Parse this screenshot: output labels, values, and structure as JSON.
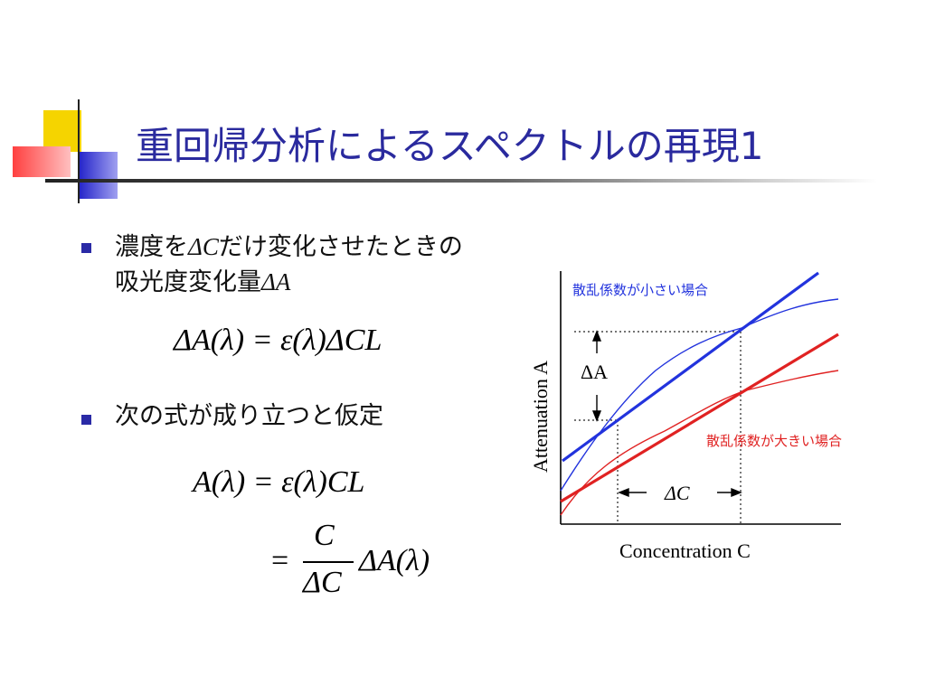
{
  "slide": {
    "title": "重回帰分析によるスペクトルの再現1"
  },
  "bullets": [
    {
      "line1_a": "濃度を",
      "line1_b": "ΔC",
      "line1_c": "だけ変化させたときの",
      "line2_a": "吸光度変化量",
      "line2_b": "ΔA"
    },
    {
      "text": "次の式が成り立つと仮定"
    }
  ],
  "equations": {
    "eq1": "ΔA(λ) = ε(λ)ΔCL",
    "eq2": "A(λ) = ε(λ)CL",
    "eq3_eq": "=",
    "eq3_num": "C",
    "eq3_den": "ΔC",
    "eq3_rhs": "ΔA(λ)"
  },
  "chart_data": {
    "type": "line",
    "title": "",
    "xlabel": "Concentration C",
    "ylabel": "Attenuation A",
    "grid": false,
    "annotations": {
      "delta_a": "ΔA",
      "delta_c": "ΔC",
      "small_scatter_label": "散乱係数が小さい場合",
      "large_scatter_label": "散乱係数が大きい場合"
    },
    "series": [
      {
        "name": "散乱係数が小さい場合",
        "kind": "linear fit",
        "color": "#2233dd"
      },
      {
        "name": "散乱係数が小さい場合",
        "kind": "measured",
        "color": "#2233dd"
      },
      {
        "name": "散乱係数が大きい場合",
        "kind": "linear fit",
        "color": "#e02222"
      },
      {
        "name": "散乱係数が大きい場合",
        "kind": "measured",
        "color": "#e02222"
      }
    ]
  },
  "colors": {
    "title": "#2a2a9e",
    "bullet": "#2a2aa6",
    "blue_series": "#2233dd",
    "red_series": "#e02222",
    "deco_yellow": "#f5d400",
    "deco_blue": "#2b2bd0",
    "deco_red": "#ff6060"
  }
}
